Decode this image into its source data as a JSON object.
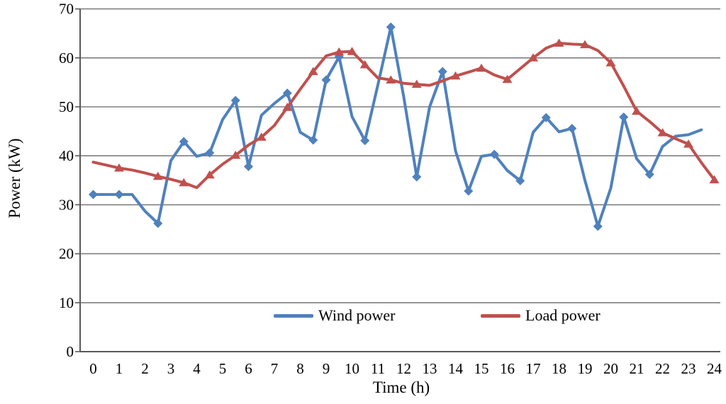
{
  "chart_data": {
    "type": "line",
    "title": "",
    "xlabel": "Time (h)",
    "ylabel": "Power (kW)",
    "xlim": [
      0,
      24
    ],
    "ylim": [
      0,
      70
    ],
    "x_ticks": [
      0,
      1,
      2,
      3,
      4,
      5,
      6,
      7,
      8,
      9,
      10,
      11,
      12,
      13,
      14,
      15,
      16,
      17,
      18,
      19,
      20,
      21,
      22,
      23,
      24
    ],
    "y_ticks": [
      0,
      10,
      20,
      30,
      40,
      50,
      60,
      70
    ],
    "grid": "horizontal-gridlines",
    "legend_position": "inside-bottom-center",
    "series": [
      {
        "name": "Wind power",
        "color": "#4F81BD",
        "marker": "diamond",
        "x": [
          0,
          0.5,
          1,
          1.5,
          2,
          2.5,
          3,
          3.5,
          4,
          4.5,
          5,
          5.5,
          6,
          6.5,
          7,
          7.5,
          8,
          8.5,
          9,
          9.5,
          10,
          10.5,
          11,
          11.5,
          12,
          12.5,
          13,
          13.5,
          14,
          14.5,
          15,
          15.5,
          16,
          16.5,
          17,
          17.5,
          18,
          18.5,
          19,
          19.5,
          20,
          20.5,
          21,
          21.5,
          22,
          22.5,
          23,
          23.5
        ],
        "values": [
          32.1,
          32.1,
          32.1,
          32.1,
          28.7,
          26.2,
          39.0,
          42.9,
          39.9,
          40.6,
          47.4,
          51.3,
          37.8,
          48.3,
          50.7,
          52.8,
          44.8,
          43.2,
          55.5,
          60.2,
          48.0,
          43.1,
          54.5,
          66.3,
          52.0,
          35.7,
          50.0,
          57.2,
          41.0,
          32.8,
          39.9,
          40.3,
          37.0,
          34.9,
          44.8,
          47.8,
          44.9,
          45.6,
          35.0,
          25.6,
          33.4,
          47.9,
          39.4,
          36.2,
          41.9,
          44.0,
          44.3,
          45.3
        ],
        "marker_x": [
          0,
          1,
          2.5,
          3.5,
          4.5,
          5.5,
          6,
          7.5,
          8.5,
          9,
          9.5,
          10.5,
          11.5,
          12.5,
          13.5,
          14.5,
          15.5,
          16.5,
          17.5,
          18.5,
          19.5,
          20.5,
          21.5
        ]
      },
      {
        "name": "Load power",
        "color": "#C0504D",
        "marker": "triangle-up",
        "x": [
          0,
          0.5,
          1,
          1.5,
          2,
          2.5,
          3,
          3.5,
          4,
          4.5,
          5,
          5.5,
          6,
          6.5,
          7,
          7.5,
          8,
          8.5,
          9,
          9.5,
          10,
          10.5,
          11,
          11.5,
          12,
          12.5,
          13,
          13.5,
          14,
          14.5,
          15,
          15.5,
          16,
          16.5,
          17,
          17.5,
          18,
          18.5,
          19,
          19.5,
          20,
          20.5,
          21,
          21.5,
          22,
          22.5,
          23,
          23.5,
          24
        ],
        "values": [
          38.7,
          38.1,
          37.5,
          37.1,
          36.5,
          35.8,
          35.2,
          34.5,
          33.5,
          36.1,
          38.3,
          40.1,
          42.2,
          43.8,
          46.2,
          49.9,
          53.6,
          57.2,
          60.4,
          61.2,
          61.3,
          58.6,
          55.9,
          55.5,
          54.8,
          54.6,
          54.4,
          55.3,
          56.3,
          57.1,
          57.9,
          56.5,
          55.6,
          57.8,
          60.0,
          62.0,
          63.0,
          62.8,
          62.7,
          61.5,
          59.0,
          54.2,
          49.1,
          47.0,
          44.7,
          43.5,
          42.4,
          38.6,
          35.1
        ],
        "marker_x": [
          1,
          2.5,
          3.5,
          4.5,
          5.5,
          6.5,
          7.5,
          8.5,
          9.5,
          10,
          10.5,
          11.5,
          12.5,
          14,
          15,
          16,
          17,
          18,
          19,
          20,
          21,
          22,
          23,
          24
        ]
      }
    ]
  },
  "colors": {
    "background": "#ffffff",
    "gridline": "#7f7f7f",
    "axis": "#595959",
    "tick_text": "#000000"
  }
}
